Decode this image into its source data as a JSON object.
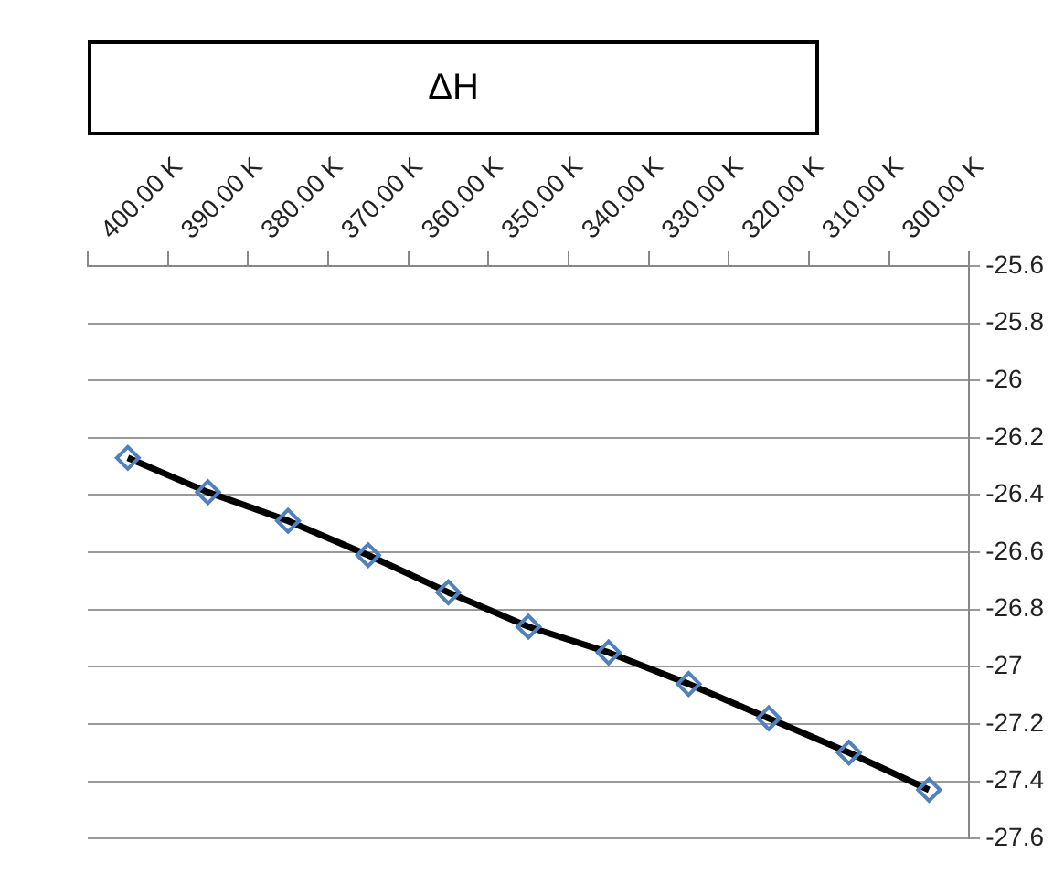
{
  "chart_data": {
    "type": "line",
    "title": "ΔH",
    "categories": [
      "400.00 K",
      "390.00 K",
      "380.00 K",
      "370.00 K",
      "360.00 K",
      "350.00 K",
      "340.00 K",
      "330.00 K",
      "320.00 K",
      "310.00 K",
      "300.00 K"
    ],
    "series": [
      {
        "color": "#000000",
        "values": [
          -26.27,
          -26.39,
          -26.49,
          -26.61,
          -26.74,
          -26.86,
          -26.95,
          -27.06,
          -27.18,
          -27.3,
          -27.43
        ]
      }
    ],
    "ylim": [
      -27.6,
      -25.6
    ],
    "yticks": [
      -25.6,
      -25.8,
      -26,
      -26.2,
      -26.4,
      -26.6,
      -26.8,
      -27,
      -27.2,
      -27.4,
      -27.6
    ],
    "grid": "y",
    "legend": false,
    "marker": "diamond",
    "line_style": "solid"
  }
}
